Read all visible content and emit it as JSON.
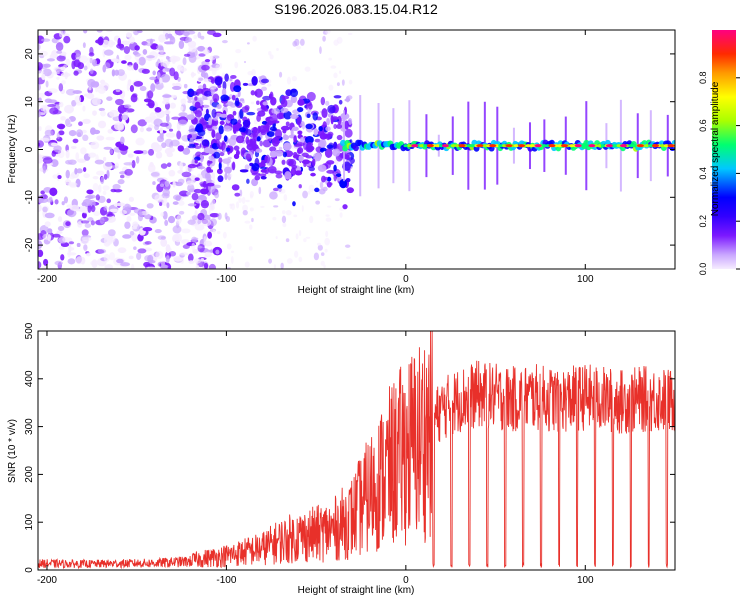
{
  "page_title": "S196.2026.083.15.04.R12",
  "chart_data": [
    {
      "type": "heatmap",
      "title": "S196.2026.083.15.04.R12",
      "xlabel": "Height of straight line (km)",
      "ylabel": "Frequency (Hz)",
      "xlim": [
        -205,
        150
      ],
      "ylim": [
        -25,
        25
      ],
      "x_ticks": [
        -200,
        -100,
        0,
        100
      ],
      "y_ticks": [
        -20,
        -10,
        0,
        10,
        20
      ],
      "grid": false,
      "colorbar": {
        "label": "Normalized spectral amplitude",
        "range": [
          0,
          1
        ],
        "ticks": [
          "0.0",
          "0.2",
          "0.4",
          "0.6",
          "0.8"
        ],
        "colors": [
          "#f6ecff",
          "#c9a6ff",
          "#7b18ff",
          "#3200ff",
          "#0000ff",
          "#00c8ff",
          "#00ff70",
          "#aaff00",
          "#ffff00",
          "#ff9a00",
          "#ff2a00",
          "#ff0080"
        ]
      },
      "description_of_features": {
        "noise_region_km": [
          -205,
          -120
        ],
        "transition_region_km": [
          -120,
          -30
        ],
        "signal_line_start_km": -35,
        "signal_line_freq_hz": 0.8
      }
    },
    {
      "type": "line",
      "xlabel": "Height of straight line (km)",
      "ylabel": "SNR (10 * v/v)",
      "xlim": [
        -205,
        150
      ],
      "ylim": [
        0,
        500
      ],
      "x_ticks": [
        -200,
        -100,
        0,
        100
      ],
      "y_ticks": [
        0,
        100,
        200,
        300,
        400,
        500
      ],
      "grid": false,
      "line_color": "#e8302a",
      "series": [
        {
          "name": "SNR",
          "x": [
            -200,
            -180,
            -160,
            -140,
            -120,
            -100,
            -80,
            -70,
            -60,
            -50,
            -40,
            -30,
            -20,
            -10,
            0,
            10,
            20,
            30,
            40,
            50,
            60,
            70,
            80,
            90,
            100,
            110,
            120,
            130,
            140,
            150
          ],
          "values": [
            15,
            14,
            15,
            16,
            20,
            30,
            45,
            60,
            70,
            75,
            85,
            110,
            160,
            210,
            250,
            280,
            330,
            350,
            360,
            355,
            350,
            355,
            350,
            350,
            355,
            350,
            345,
            350,
            350,
            345
          ]
        }
      ]
    }
  ]
}
